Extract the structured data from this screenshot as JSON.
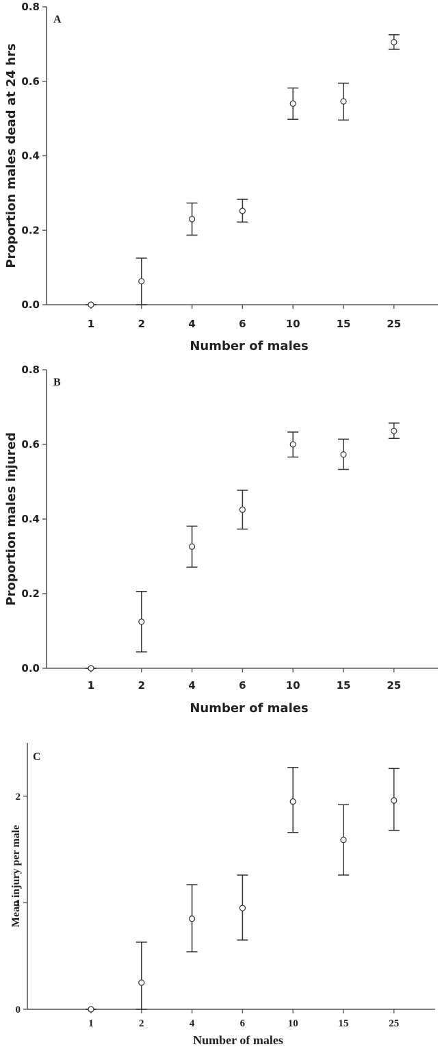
{
  "chart_data": [
    {
      "type": "scatter",
      "panel": "A",
      "font": "sans",
      "title": "",
      "xlabel": "Number of males",
      "ylabel": "Proportion males dead at 24 hrs",
      "ylim": [
        0,
        0.8
      ],
      "y_ticks": [
        0.0,
        0.2,
        0.4,
        0.6,
        0.8
      ],
      "y_tick_labels": [
        "0.0",
        "0.2",
        "0.4",
        "0.6",
        "0.8"
      ],
      "categories": [
        "1",
        "2",
        "4",
        "6",
        "10",
        "15",
        "25"
      ],
      "values": [
        0.0,
        0.063,
        0.23,
        0.252,
        0.54,
        0.546,
        0.705
      ],
      "err_low": [
        0.0,
        0.0,
        0.187,
        0.222,
        0.498,
        0.496,
        0.686
      ],
      "err_high": [
        0.0,
        0.125,
        0.273,
        0.283,
        0.582,
        0.595,
        0.725
      ]
    },
    {
      "type": "scatter",
      "panel": "B",
      "font": "sans",
      "title": "",
      "xlabel": "Number of males",
      "ylabel": "Proportion males injured",
      "ylim": [
        0,
        0.8
      ],
      "y_ticks": [
        0.0,
        0.2,
        0.4,
        0.6,
        0.8
      ],
      "y_tick_labels": [
        "0.0",
        "0.2",
        "0.4",
        "0.6",
        "0.8"
      ],
      "categories": [
        "1",
        "2",
        "4",
        "6",
        "10",
        "15",
        "25"
      ],
      "values": [
        0.0,
        0.125,
        0.326,
        0.425,
        0.6,
        0.573,
        0.636
      ],
      "err_low": [
        0.0,
        0.044,
        0.271,
        0.373,
        0.566,
        0.533,
        0.616
      ],
      "err_high": [
        0.0,
        0.206,
        0.381,
        0.477,
        0.633,
        0.614,
        0.657
      ]
    },
    {
      "type": "scatter",
      "panel": "C",
      "font": "serif",
      "title": "",
      "xlabel": "Number of males",
      "ylabel": "Mean injury per male",
      "ylim": [
        0,
        2.5
      ],
      "y_ticks": [
        0,
        1,
        2
      ],
      "y_tick_labels": [
        "0",
        "1",
        "2"
      ],
      "categories": [
        "1",
        "2",
        "4",
        "6",
        "10",
        "15",
        "25"
      ],
      "values": [
        0.0,
        0.25,
        0.85,
        0.95,
        1.95,
        1.59,
        1.96
      ],
      "err_low": [
        0.0,
        0.0,
        0.54,
        0.65,
        1.66,
        1.26,
        1.68
      ],
      "err_high": [
        0.0,
        0.63,
        1.17,
        1.26,
        2.27,
        1.92,
        2.26
      ]
    }
  ]
}
